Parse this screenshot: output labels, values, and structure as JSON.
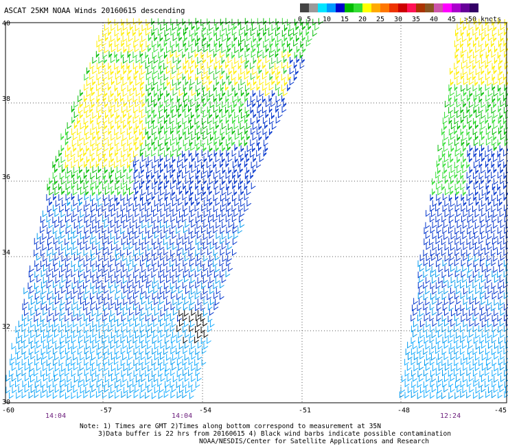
{
  "title": "ASCAT 25KM NOAA Winds 20160615 descending",
  "legend": {
    "bins": [
      {
        "label": "0",
        "color": "#444444"
      },
      {
        "label": "5",
        "color": "#9a9a9a"
      },
      {
        "label": "",
        "color": "#00e5ff"
      },
      {
        "label": "10",
        "color": "#0099ff"
      },
      {
        "label": "",
        "color": "#0000cc"
      },
      {
        "label": "15",
        "color": "#00bb00"
      },
      {
        "label": "",
        "color": "#33dd33"
      },
      {
        "label": "20",
        "color": "#ffff00"
      },
      {
        "label": "",
        "color": "#ffaa00"
      },
      {
        "label": "25",
        "color": "#ff7700"
      },
      {
        "label": "",
        "color": "#ee3300"
      },
      {
        "label": "30",
        "color": "#cc0000"
      },
      {
        "label": "",
        "color": "#ff1155"
      },
      {
        "label": "35",
        "color": "#aa3300"
      },
      {
        "label": "",
        "color": "#885522"
      },
      {
        "label": "40",
        "color": "#cc55aa"
      },
      {
        "label": "",
        "color": "#ff00ff"
      },
      {
        "label": "45",
        "color": "#aa00cc"
      },
      {
        "label": "",
        "color": "#660099"
      },
      {
        "label": ">50 knots",
        "color": "#330066"
      }
    ]
  },
  "axes": {
    "lat_ticks": [
      "40",
      "38",
      "36",
      "34",
      "32",
      "30"
    ],
    "lon_ticks": [
      "-60",
      "-57",
      "-54",
      "-51",
      "-48",
      "-45"
    ]
  },
  "swath_times": [
    "14:04",
    "14:04",
    "12:24"
  ],
  "notes": [
    "Note: 1) Times are GMT 2)Times along bottom correspond to measurement at 35N",
    "3)Data buffer is 22 hrs from 20160615 4) Black wind barbs indicate possible contamination",
    "NOAA/NESDIS/Center for Satellite Applications and Research"
  ]
}
